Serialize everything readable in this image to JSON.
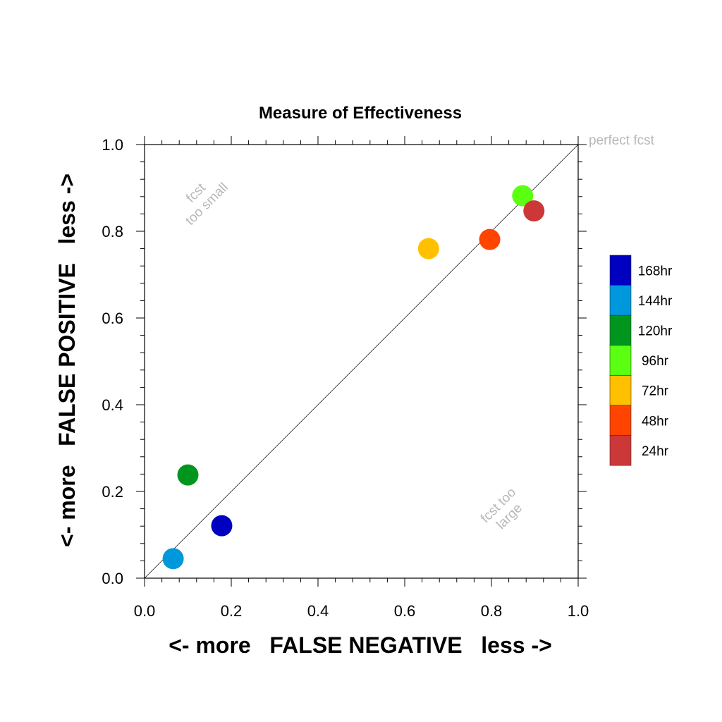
{
  "chart_data": {
    "type": "scatter",
    "title": "Measure of Effectiveness",
    "xlabel": "<- more   FALSE NEGATIVE   less ->",
    "ylabel": "<- more   FALSE POSITIVE   less ->",
    "xlim": [
      0.0,
      1.0
    ],
    "ylim": [
      0.0,
      1.0
    ],
    "x_ticks": [
      "0.0",
      "0.2",
      "0.4",
      "0.6",
      "0.8",
      "1.0"
    ],
    "y_ticks": [
      "0.0",
      "0.2",
      "0.4",
      "0.6",
      "0.8",
      "1.0"
    ],
    "grid": false,
    "reference_line": {
      "from": [
        0,
        0
      ],
      "to": [
        1,
        1
      ]
    },
    "annotations": {
      "perfect": "perfect fcst",
      "small_line1": "fcst",
      "small_line2": "too small",
      "large_line1": "fcst too",
      "large_line2": "large"
    },
    "series": [
      {
        "name": "168hr",
        "color": "#0000c0",
        "x": 0.178,
        "y": 0.121
      },
      {
        "name": "144hr",
        "color": "#0098dc",
        "x": 0.066,
        "y": 0.045
      },
      {
        "name": "120hr",
        "color": "#00961e",
        "x": 0.1,
        "y": 0.238
      },
      {
        "name": "96hr",
        "color": "#5aff12",
        "x": 0.872,
        "y": 0.882
      },
      {
        "name": "72hr",
        "color": "#ffc000",
        "x": 0.655,
        "y": 0.76
      },
      {
        "name": "48hr",
        "color": "#ff4400",
        "x": 0.796,
        "y": 0.781
      },
      {
        "name": "24hr",
        "color": "#cc3838",
        "x": 0.898,
        "y": 0.847
      }
    ],
    "legend_placement": "right"
  }
}
